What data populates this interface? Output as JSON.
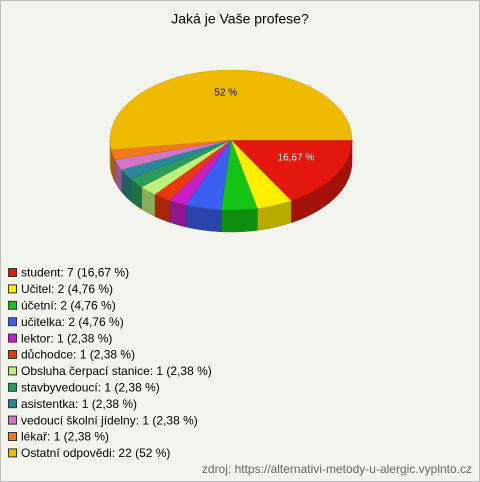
{
  "chart_data": {
    "type": "pie3d",
    "title": "Jaká je Vaše profese?",
    "categories": [
      "student: 7 (16,67 %)",
      "Učitel: 2 (4,76 %)",
      "účetní: 2 (4,76 %)",
      "učitelka: 2 (4,76 %)",
      "lektor: 1 (2,38 %)",
      "důchodce: 1 (2,38 %)",
      "Obsluha čerpací stanice: 1 (2,38 %)",
      "stavbyvedoucí: 1 (2,38 %)",
      "asistentka: 1 (2,38 %)",
      "vedoucí školní jídelny: 1 (2,38 %)",
      "lékař: 1 (2,38 %)",
      "Ostatní odpovědi: 22 (52 %)"
    ],
    "values": [
      16.67,
      4.76,
      4.76,
      4.76,
      2.38,
      2.38,
      2.38,
      2.38,
      2.38,
      2.38,
      2.38,
      52
    ],
    "value_labels": [
      "16,67 %",
      null,
      null,
      null,
      null,
      null,
      null,
      null,
      null,
      null,
      null,
      "52 %"
    ],
    "colors": [
      "#e3170d",
      "#ffee00",
      "#14c414",
      "#3b5ff0",
      "#c81ec8",
      "#e8380c",
      "#bdf27a",
      "#2c9c5c",
      "#2a8797",
      "#d276c6",
      "#f07a1c",
      "#f0ba00"
    ],
    "source": "zdroj: https://alternativi-metody-u-alergic.vyplnto.cz"
  }
}
